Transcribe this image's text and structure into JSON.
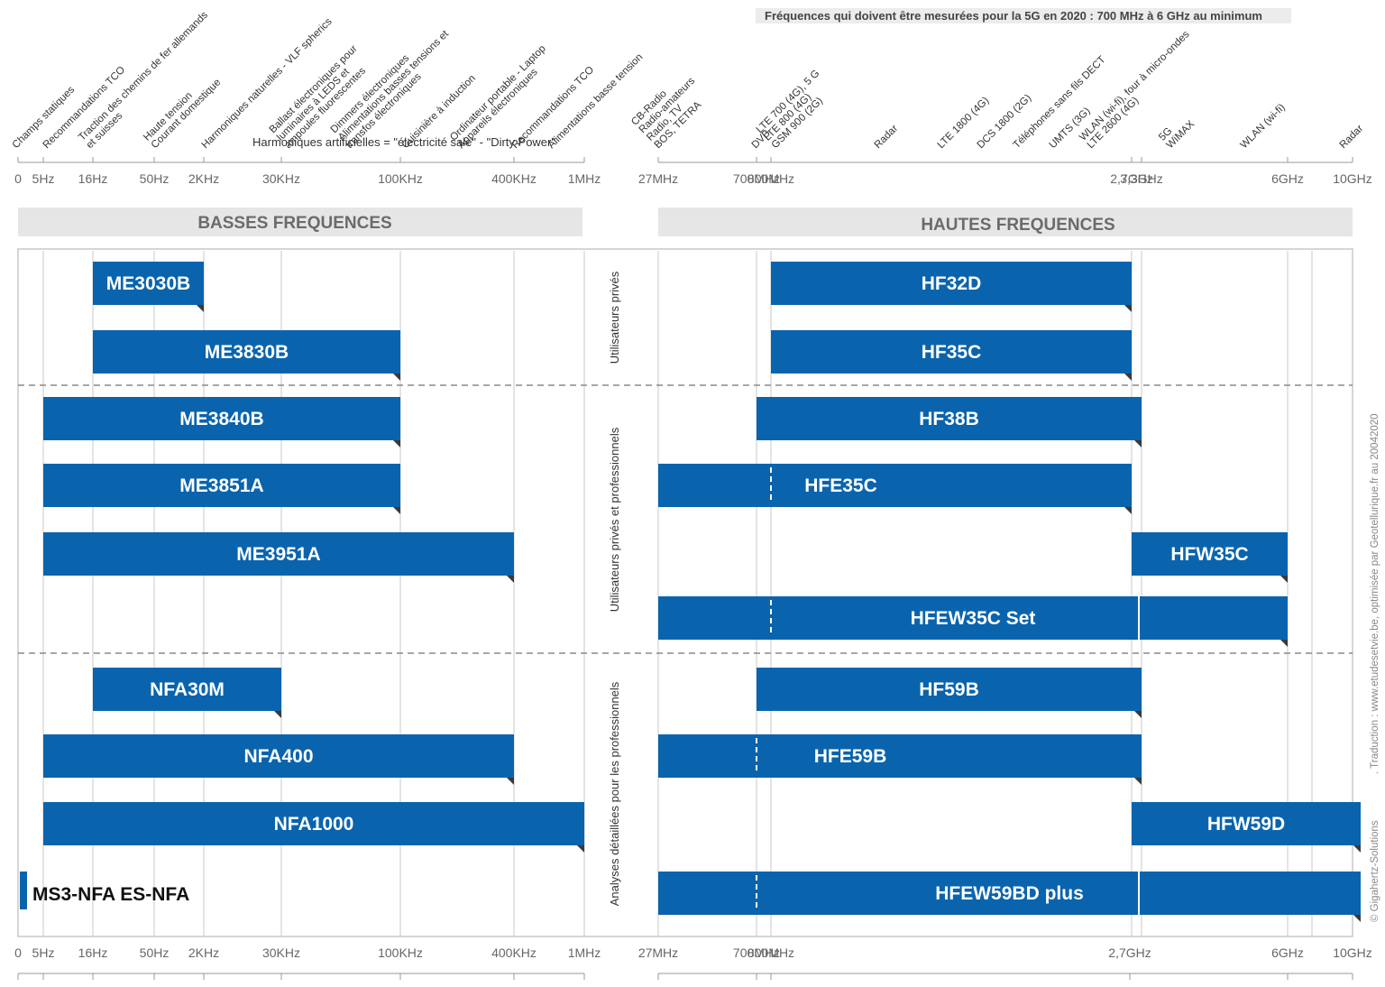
{
  "chart_data": {
    "type": "bar",
    "notes": {
      "top_5g": "Fréquences qui doivent être mesurées pour la 5G en 2020 : 700 MHz à 6 GHz au minimum",
      "harmonics": "Harmoniques artificielles = \"électricité sale\" - \"Dirty Power\"",
      "credit_1": "© Gigahertz-Solutions",
      "credit_2": ". Traduction : www.etudesetvie.be, optimisée par  Geotellurique.fr au 20042020"
    },
    "bands": {
      "low": "BASSES FREQUENCES",
      "high": "HAUTES FREQUENCES"
    },
    "low_ticks": [
      "0",
      "5Hz",
      "16Hz",
      "50Hz",
      "2KHz",
      "30KHz",
      "100KHz",
      "400KHz",
      "1MHz"
    ],
    "high_ticks_top": [
      "27MHz",
      "700MHz",
      "800MHz",
      "2,7GHz",
      "3,3GHz",
      "6GHz",
      "10GHz"
    ],
    "high_ticks_bottom": [
      "27MHz",
      "700MHz",
      "800MHz",
      "2,7GHz",
      "6GHz",
      "10GHz"
    ],
    "low_applications": [
      [
        "Champs statiques"
      ],
      [
        "Recommandations TCO"
      ],
      [
        "Traction des chemins de fer allemands",
        "et suisses"
      ],
      [
        "Haute tension",
        "Courant domestique"
      ],
      [
        "Harmoniques naturelles - VLF spherics"
      ],
      [
        "Ballast électroniques pour",
        "luminaires à LEDS et",
        "ampoules fluorescentes"
      ],
      [
        "Dimmers électroniques",
        "Alimentations basses tensions et",
        "transfos électroniques"
      ],
      [
        "Cuisinière à induction"
      ],
      [
        "Ordinateur portable - Laptop",
        "Appareils électroniques"
      ],
      [
        "Recommandations TCO"
      ],
      [
        "Alimentations basse tension"
      ]
    ],
    "high_applications": [
      [
        "CB-Radio",
        "Radio-amateurs",
        "Radio, TV",
        "BOS, TETRA"
      ],
      [
        "DVB"
      ],
      [
        "LTE 700 (4G), 5 G",
        "LTE 800 (4G)",
        "GSM 900 (2G)"
      ],
      [
        "Radar"
      ],
      [
        "LTE 1800 (4G)"
      ],
      [
        "DCS 1800 (2G)"
      ],
      [
        "Téléphones sans fils DECT"
      ],
      [
        "UMTS (3G)"
      ],
      [
        "WLAN (wi-fi), four à micro-ondes",
        "LTE 2600 (4G)"
      ],
      [
        "5G",
        "WiMAX"
      ],
      [
        "WLAN (wi-fi)"
      ],
      [
        "Radar"
      ]
    ],
    "groups": [
      "Utilisateurs privés",
      "Utilisateurs privés et professionnels",
      "Analyses détaillées pour les professionnels"
    ],
    "series": [
      {
        "name": "ME3030B",
        "x": [
          "16Hz",
          "2KHz"
        ]
      },
      {
        "name": "ME3830B",
        "x": [
          "16Hz",
          "100KHz"
        ]
      },
      {
        "name": "ME3840B",
        "x": [
          "5Hz",
          "100KHz"
        ]
      },
      {
        "name": "ME3851A",
        "x": [
          "5Hz",
          "100KHz"
        ]
      },
      {
        "name": "ME3951A",
        "x": [
          "5Hz",
          "400KHz"
        ]
      },
      {
        "name": "NFA30M",
        "x": [
          "16Hz",
          "30KHz"
        ]
      },
      {
        "name": "NFA400",
        "x": [
          "5Hz",
          "400KHz"
        ]
      },
      {
        "name": "NFA1000",
        "x": [
          "5Hz",
          "1MHz"
        ]
      },
      {
        "name": "HF32D",
        "x": [
          "800MHz",
          "2,7GHz"
        ]
      },
      {
        "name": "HF35C",
        "x": [
          "800MHz",
          "2,7GHz"
        ]
      },
      {
        "name": "HF38B",
        "x": [
          "700MHz",
          "3,3GHz"
        ]
      },
      {
        "name": "HFE35C",
        "x": [
          "27MHz",
          "2,7GHz"
        ]
      },
      {
        "name": "HFW35C",
        "x": [
          "2,7GHz",
          "6GHz"
        ]
      },
      {
        "name": "HFEW35C Set",
        "x": [
          "27MHz",
          "6GHz"
        ]
      },
      {
        "name": "HF59B",
        "x": [
          "700MHz",
          "3,3GHz"
        ]
      },
      {
        "name": "HFE59B",
        "x": [
          "27MHz",
          "3,3GHz"
        ]
      },
      {
        "name": "HFW59D",
        "x": [
          "2,7GHz",
          "10GHz"
        ]
      },
      {
        "name": "HFEW59BD plus",
        "x": [
          "27MHz",
          "10GHz"
        ]
      }
    ],
    "ms3_label": "MS3-NFA  ES-NFA",
    "colors": {
      "bar": "#0a64ad",
      "bar_shadow": "#3a3a3a",
      "band_bg": "#e6e6e6",
      "grid": "#c8c8c8",
      "dashed": "#8a8a8a"
    }
  }
}
